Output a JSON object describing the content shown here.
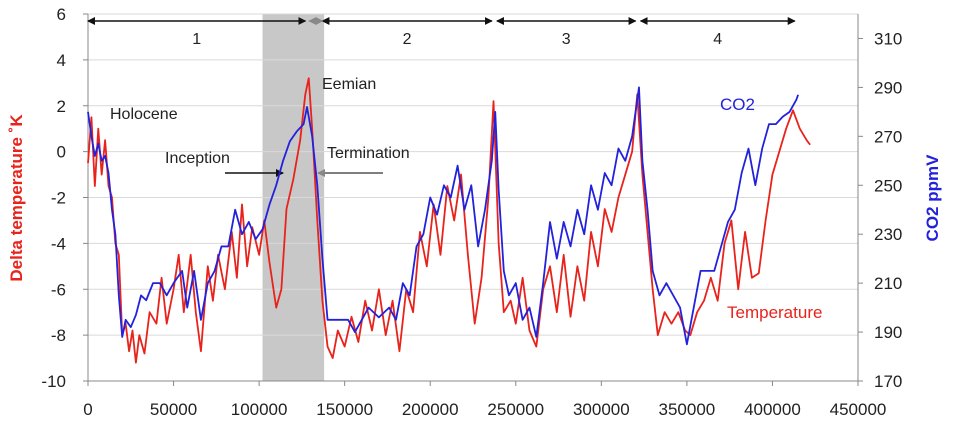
{
  "chart_data": {
    "type": "line",
    "y_label": "Delta temperature ˚K",
    "y2_label": "CO2 ppmV",
    "xlim": [
      0,
      450000
    ],
    "xticks": [
      0,
      50000,
      100000,
      150000,
      200000,
      250000,
      300000,
      350000,
      400000,
      450000
    ],
    "ylim": [
      -10,
      6
    ],
    "yticks": [
      -10,
      -8,
      -6,
      -4,
      -2,
      0,
      2,
      4,
      6
    ],
    "y2lim": [
      170,
      320
    ],
    "y2ticks": [
      170,
      190,
      210,
      230,
      250,
      270,
      290,
      310
    ],
    "grid": true,
    "shaded_span": [
      102000,
      138000
    ],
    "periods": [
      {
        "label": "1",
        "start": 0,
        "end": 127000
      },
      {
        "label": "2",
        "start": 137000,
        "end": 236000
      },
      {
        "label": "3",
        "start": 239000,
        "end": 320000
      },
      {
        "label": "4",
        "start": 323000,
        "end": 413000
      }
    ],
    "annotations": [
      "Holocene",
      "Eemian",
      "Inception",
      "Termination"
    ],
    "series": [
      {
        "name": "Temperature",
        "color": "#e8231c",
        "x": [
          0,
          2000,
          4000,
          6000,
          8000,
          10000,
          12000,
          14000,
          16000,
          18000,
          20000,
          22000,
          24000,
          26000,
          28000,
          30000,
          33000,
          36000,
          40000,
          43000,
          46000,
          50000,
          53000,
          56000,
          60000,
          63000,
          66000,
          70000,
          73000,
          76000,
          80000,
          84000,
          87000,
          90000,
          93000,
          96000,
          100000,
          103000,
          106000,
          110000,
          113000,
          116000,
          120000,
          124000,
          127000,
          129000,
          131000,
          134000,
          137000,
          140000,
          143000,
          146000,
          150000,
          154000,
          158000,
          162000,
          166000,
          170000,
          174000,
          178000,
          182000,
          186000,
          190000,
          194000,
          198000,
          202000,
          206000,
          210000,
          214000,
          218000,
          222000,
          226000,
          230000,
          234000,
          237000,
          240000,
          243000,
          247000,
          250000,
          254000,
          258000,
          262000,
          266000,
          270000,
          274000,
          278000,
          282000,
          286000,
          290000,
          294000,
          298000,
          302000,
          306000,
          310000,
          314000,
          318000,
          321000,
          324000,
          327000,
          330000,
          333000,
          337000,
          341000,
          345000,
          349000,
          352000,
          356000,
          360000,
          364000,
          368000,
          372000,
          376000,
          380000,
          384000,
          388000,
          392000,
          396000,
          400000,
          404000,
          408000,
          412000,
          416000,
          420000,
          422000
        ],
        "values": [
          -0.5,
          1.5,
          -1.5,
          1,
          -1,
          0.5,
          -1.5,
          -2,
          -4,
          -4.5,
          -8,
          -7.5,
          -8.7,
          -7.8,
          -9.2,
          -8,
          -8.8,
          -7,
          -7.5,
          -5.5,
          -7.5,
          -6,
          -4.5,
          -7,
          -4.5,
          -7,
          -8.7,
          -5,
          -6.5,
          -4.5,
          -6,
          -3.5,
          -5.5,
          -2.3,
          -5,
          -3.3,
          -4.5,
          -3,
          -4.8,
          -6.8,
          -6,
          -2.5,
          -1.2,
          0.5,
          2.5,
          3.2,
          1,
          -3,
          -6.5,
          -8.5,
          -9,
          -7.8,
          -8.5,
          -7.2,
          -8.3,
          -6.5,
          -7.8,
          -6,
          -8,
          -6.5,
          -8.7,
          -6,
          -7,
          -3.5,
          -5,
          -2.3,
          -4.5,
          -1.5,
          -3,
          -1,
          -4.5,
          -7.5,
          -5.5,
          -2,
          2.2,
          -4,
          -7,
          -6.5,
          -7.5,
          -5.5,
          -7.8,
          -8.5,
          -6,
          -5,
          -7,
          -4.5,
          -7.2,
          -5,
          -6.5,
          -3.5,
          -5,
          -2.5,
          -3.5,
          -2,
          -1,
          0,
          2.5,
          -1,
          -3.5,
          -6,
          -8,
          -7,
          -7.5,
          -7,
          -7.8,
          -8,
          -7,
          -6.5,
          -5.5,
          -6.5,
          -4,
          -3,
          -6,
          -3.5,
          -5.5,
          -5.3,
          -3,
          -1,
          0,
          1,
          1.8,
          1,
          0.5,
          0.3
        ]
      },
      {
        "name": "CO2",
        "color": "#2222dd",
        "axis": "y2",
        "x": [
          0,
          2000,
          4000,
          6000,
          8000,
          10000,
          12000,
          14000,
          16000,
          18000,
          20000,
          22000,
          25000,
          28000,
          31000,
          34000,
          38000,
          42000,
          46000,
          50000,
          55000,
          58000,
          62000,
          66000,
          70000,
          74000,
          78000,
          82000,
          86000,
          90000,
          94000,
          98000,
          102000,
          106000,
          110000,
          114000,
          118000,
          122000,
          126000,
          128000,
          131000,
          134000,
          137000,
          140000,
          144000,
          148000,
          152000,
          156000,
          160000,
          164000,
          170000,
          176000,
          180000,
          184000,
          188000,
          192000,
          196000,
          200000,
          204000,
          208000,
          212000,
          216000,
          220000,
          224000,
          228000,
          232000,
          236000,
          238000,
          240000,
          243000,
          246000,
          250000,
          254000,
          258000,
          262000,
          266000,
          270000,
          274000,
          278000,
          282000,
          286000,
          290000,
          294000,
          298000,
          302000,
          306000,
          310000,
          314000,
          318000,
          322000,
          324000,
          327000,
          330000,
          334000,
          338000,
          342000,
          346000,
          350000,
          354000,
          358000,
          362000,
          366000,
          370000,
          374000,
          378000,
          382000,
          386000,
          390000,
          394000,
          398000,
          402000,
          406000,
          410000,
          414000,
          415000
        ],
        "values": [
          280,
          270,
          262,
          267,
          260,
          262,
          255,
          240,
          230,
          205,
          188,
          195,
          192,
          197,
          205,
          203,
          210,
          210,
          205,
          210,
          215,
          200,
          215,
          195,
          210,
          215,
          225,
          225,
          240,
          230,
          235,
          228,
          232,
          242,
          250,
          260,
          268,
          272,
          275,
          282,
          270,
          250,
          220,
          195,
          195,
          195,
          195,
          190,
          195,
          200,
          196,
          200,
          195,
          210,
          205,
          225,
          230,
          245,
          238,
          250,
          245,
          258,
          240,
          250,
          225,
          240,
          260,
          280,
          248,
          215,
          205,
          210,
          195,
          200,
          188,
          210,
          235,
          220,
          235,
          225,
          240,
          230,
          250,
          240,
          255,
          250,
          265,
          260,
          270,
          290,
          260,
          240,
          215,
          205,
          210,
          205,
          200,
          185,
          200,
          215,
          215,
          215,
          225,
          235,
          240,
          255,
          265,
          250,
          265,
          275,
          275,
          278,
          280,
          285,
          287
        ]
      }
    ]
  }
}
